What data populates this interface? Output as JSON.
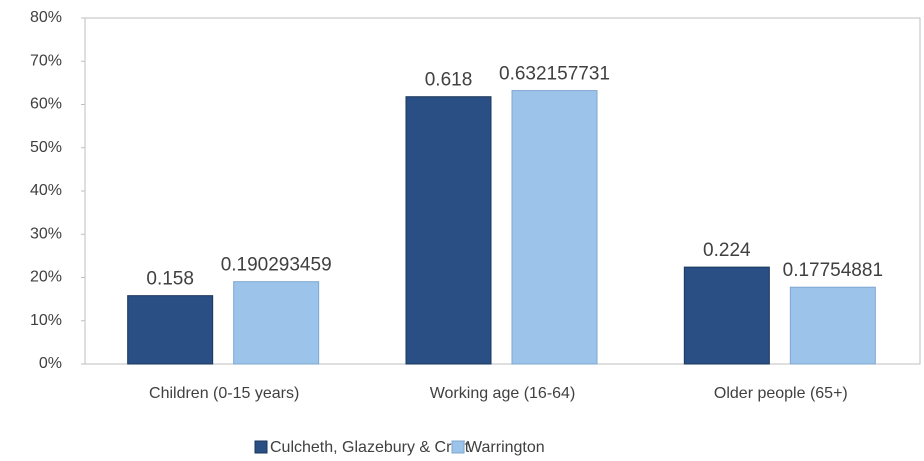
{
  "chart_data": {
    "type": "bar",
    "categories": [
      "Children (0-15 years)",
      "Working age (16-64)",
      "Older people (65+)"
    ],
    "series": [
      {
        "name": "Culcheth, Glazebury & Croft",
        "color": "#2a4f84",
        "values": [
          15.8,
          61.8,
          22.4
        ],
        "value_labels": [
          "0.158",
          "0.618",
          "0.224"
        ]
      },
      {
        "name": "Warrington",
        "color": "#9cc3ea",
        "values": [
          19.0293459,
          63.2157731,
          17.754881
        ],
        "value_labels": [
          "0.190293459",
          "0.632157731",
          "0.17754881"
        ]
      }
    ],
    "ylim": [
      0,
      80
    ],
    "yticks": [
      {
        "value": 0,
        "label": "0%"
      },
      {
        "value": 10,
        "label": "10%"
      },
      {
        "value": 20,
        "label": "20%"
      },
      {
        "value": 30,
        "label": "30%"
      },
      {
        "value": 40,
        "label": "40%"
      },
      {
        "value": 50,
        "label": "50%"
      },
      {
        "value": 60,
        "label": "60%"
      },
      {
        "value": 70,
        "label": "70%"
      },
      {
        "value": 80,
        "label": "80%"
      }
    ],
    "grid": false,
    "legend": "bottom"
  }
}
